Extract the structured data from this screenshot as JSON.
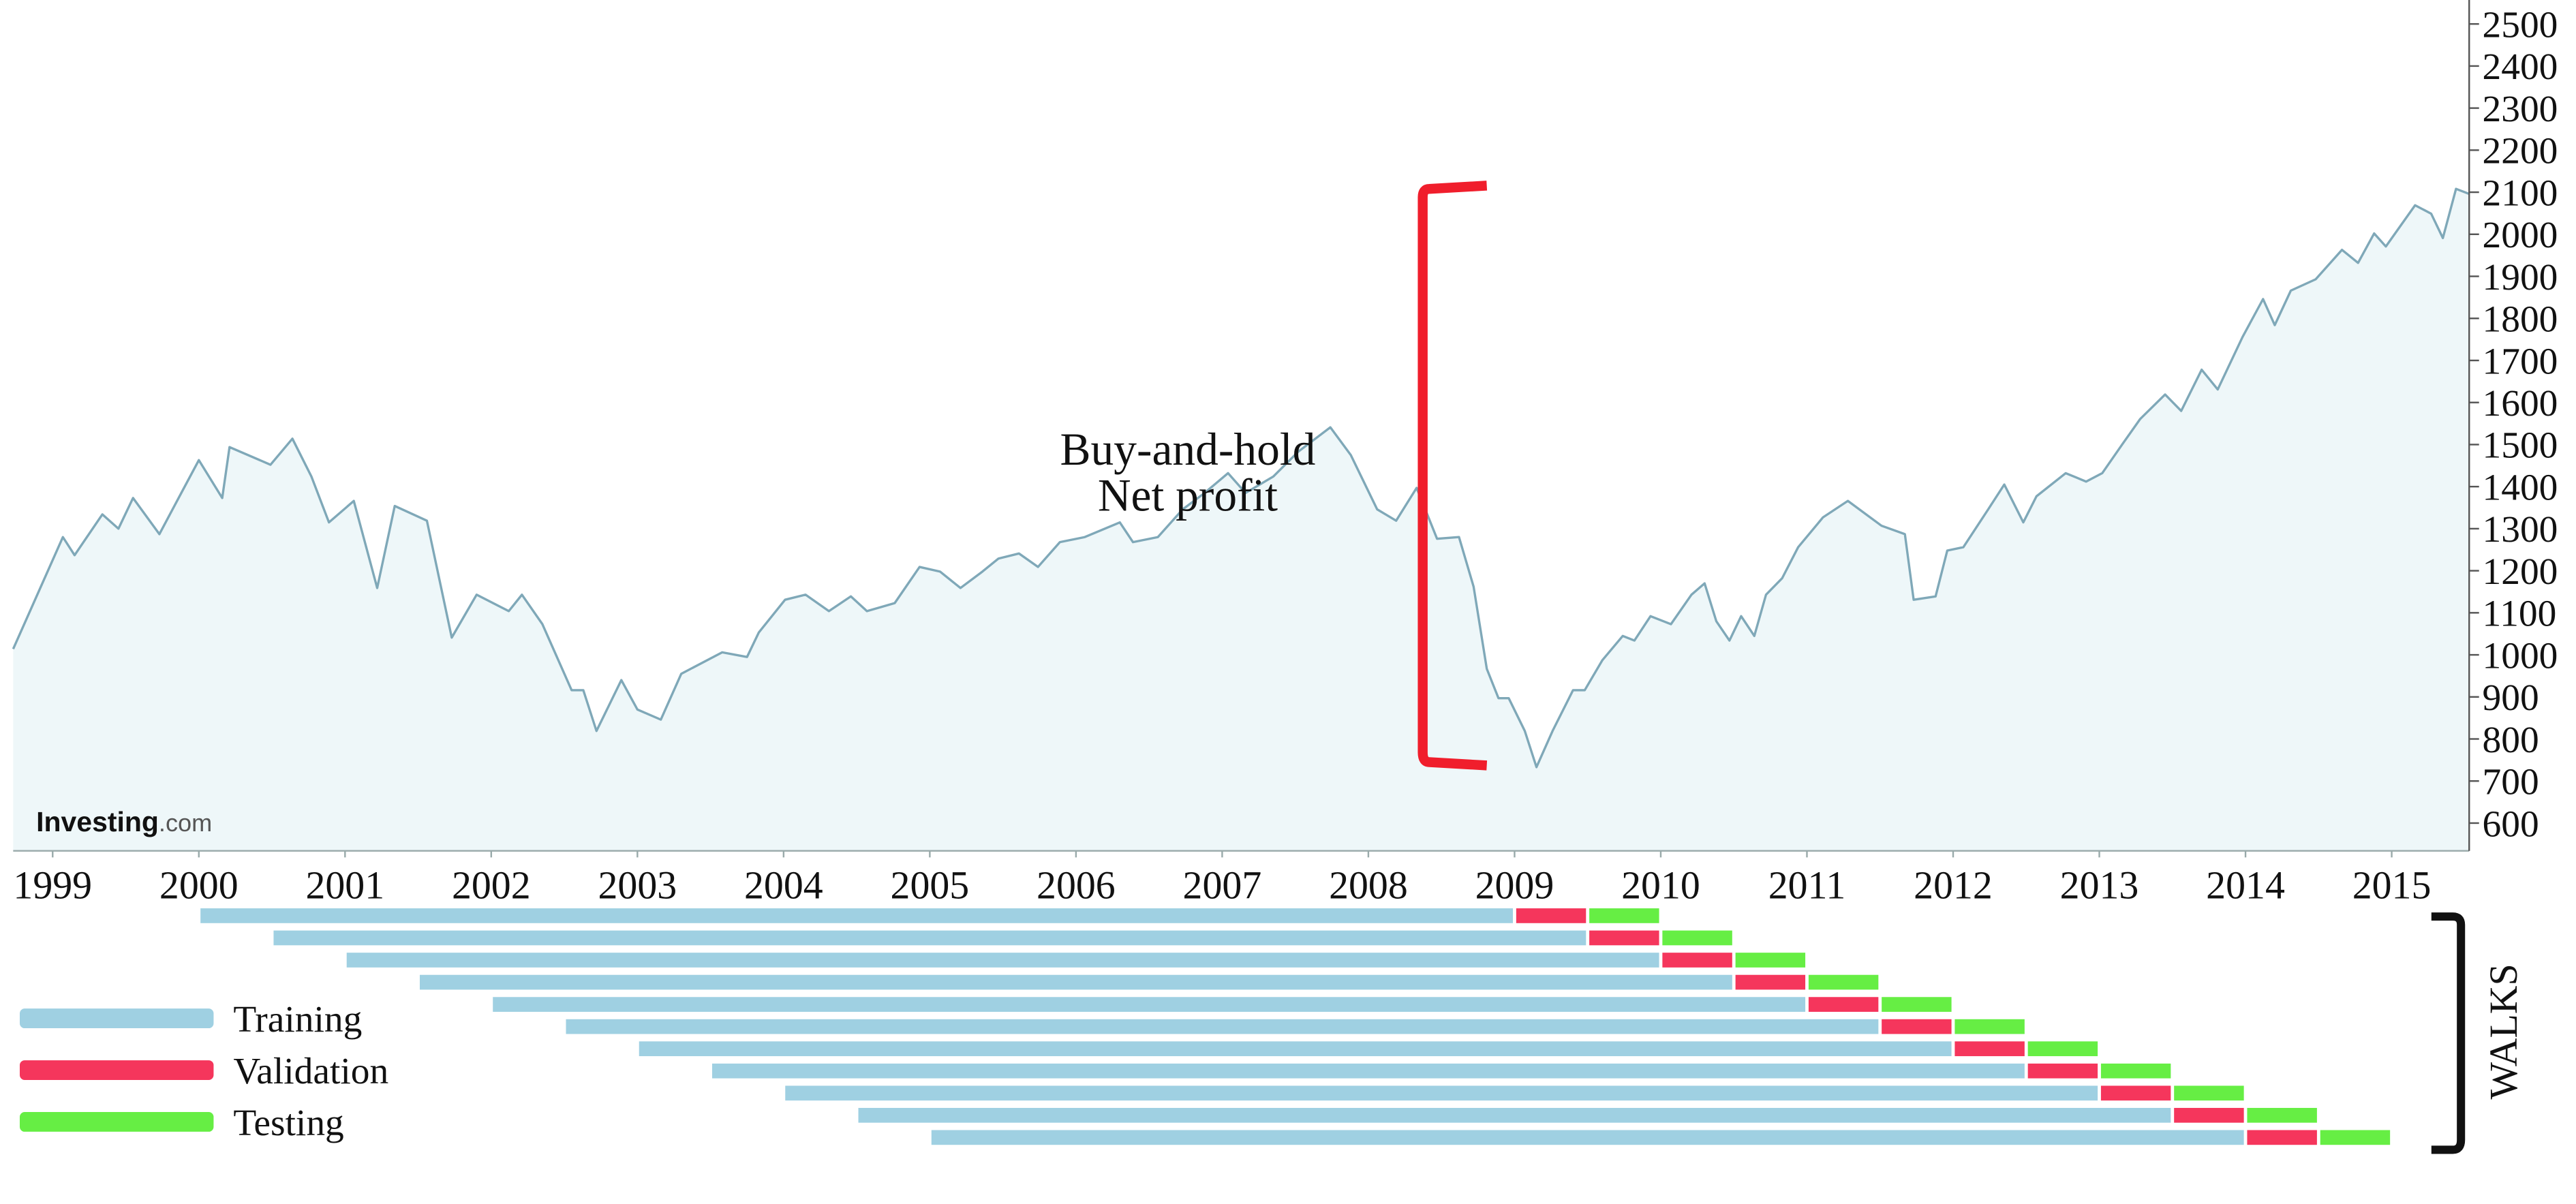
{
  "chart_data": {
    "type": "line",
    "annotation": [
      "Buy-and-hold",
      "Net profit"
    ],
    "watermark": {
      "brand": "Investing",
      "suffix": ".com"
    },
    "walks_label": "WALKS",
    "line_color": "#7fa8b8",
    "fill_color": "#eef7f9",
    "xlim": [
      1998.73,
      2015.53
    ],
    "xticks": [
      1999,
      2000,
      2001,
      2002,
      2003,
      2004,
      2005,
      2006,
      2007,
      2008,
      2009,
      2010,
      2011,
      2012,
      2013,
      2014,
      2015
    ],
    "ylim": [
      534,
      2557
    ],
    "yticks": [
      600,
      700,
      800,
      900,
      1000,
      1100,
      1200,
      1300,
      1400,
      1500,
      1600,
      1700,
      1800,
      1900,
      2000,
      2100,
      2200,
      2300,
      2400,
      2500
    ],
    "x": [
      1998.73,
      1999.07,
      1999.15,
      1999.34,
      1999.45,
      1999.55,
      1999.73,
      1999.88,
      2000.0,
      2000.16,
      2000.21,
      2000.49,
      2000.64,
      2000.77,
      2000.89,
      2001.06,
      2001.22,
      2001.34,
      2001.56,
      2001.73,
      2001.9,
      2002.12,
      2002.21,
      2002.35,
      2002.55,
      2002.63,
      2002.72,
      2002.89,
      2003.0,
      2003.16,
      2003.3,
      2003.58,
      2003.75,
      2003.83,
      2004.01,
      2004.15,
      2004.31,
      2004.46,
      2004.57,
      2004.76,
      2004.93,
      2005.07,
      2005.21,
      2005.36,
      2005.47,
      2005.61,
      2005.74,
      2005.89,
      2006.06,
      2006.3,
      2006.39,
      2006.56,
      2006.73,
      2006.88,
      2007.04,
      2007.16,
      2007.35,
      2007.52,
      2007.74,
      2007.88,
      2008.06,
      2008.19,
      2008.33,
      2008.47,
      2008.62,
      2008.72,
      2008.81,
      2008.89,
      2008.96,
      2009.07,
      2009.15,
      2009.26,
      2009.4,
      2009.48,
      2009.6,
      2009.74,
      2009.82,
      2009.93,
      2010.07,
      2010.21,
      2010.3,
      2010.38,
      2010.47,
      2010.55,
      2010.64,
      2010.72,
      2010.83,
      2010.94,
      2011.11,
      2011.28,
      2011.51,
      2011.67,
      2011.73,
      2011.88,
      2011.96,
      2012.07,
      2012.24,
      2012.35,
      2012.48,
      2012.57,
      2012.77,
      2012.91,
      2013.02,
      2013.16,
      2013.28,
      2013.45,
      2013.56,
      2013.7,
      2013.81,
      2013.98,
      2014.12,
      2014.2,
      2014.31,
      2014.48,
      2014.66,
      2014.77,
      2014.88,
      2014.96,
      2015.16,
      2015.27,
      2015.35,
      2015.44,
      2015.53
    ],
    "values": [
      1014,
      1280,
      1237,
      1334,
      1300,
      1373,
      1287,
      1385,
      1463,
      1373,
      1494,
      1452,
      1514,
      1424,
      1315,
      1366,
      1159,
      1354,
      1319,
      1041,
      1143,
      1104,
      1143,
      1073,
      916,
      916,
      819,
      940,
      870,
      846,
      955,
      1006,
      995,
      1053,
      1131,
      1143,
      1104,
      1139,
      1104,
      1123,
      1209,
      1198,
      1159,
      1198,
      1229,
      1241,
      1209,
      1268,
      1280,
      1315,
      1268,
      1280,
      1346,
      1385,
      1432,
      1385,
      1424,
      1483,
      1541,
      1475,
      1346,
      1319,
      1397,
      1276,
      1280,
      1162,
      967,
      897,
      897,
      819,
      733,
      819,
      916,
      916,
      987,
      1045,
      1034,
      1092,
      1073,
      1143,
      1170,
      1080,
      1034,
      1092,
      1045,
      1143,
      1182,
      1256,
      1327,
      1366,
      1307,
      1287,
      1131,
      1139,
      1248,
      1256,
      1346,
      1405,
      1315,
      1377,
      1432,
      1412,
      1432,
      1502,
      1561,
      1619,
      1580,
      1678,
      1631,
      1756,
      1846,
      1784,
      1866,
      1893,
      1963,
      1932,
      2002,
      1971,
      2069,
      2049,
      1991,
      2108,
      2096
    ],
    "legend": [
      {
        "name": "Training",
        "color": "#9fd0e2"
      },
      {
        "name": "Validation",
        "color": "#f5365c"
      },
      {
        "name": "Testing",
        "color": "#66ee44"
      }
    ],
    "walks": [
      [
        [
          2000.0,
          2009.0
        ],
        [
          2009.0,
          2009.5
        ],
        [
          2009.5,
          2010.0
        ]
      ],
      [
        [
          2000.5,
          2009.5
        ],
        [
          2009.5,
          2010.0
        ],
        [
          2010.0,
          2010.5
        ]
      ],
      [
        [
          2001.0,
          2010.0
        ],
        [
          2010.0,
          2010.5
        ],
        [
          2010.5,
          2011.0
        ]
      ],
      [
        [
          2001.5,
          2010.5
        ],
        [
          2010.5,
          2011.0
        ],
        [
          2011.0,
          2011.5
        ]
      ],
      [
        [
          2002.0,
          2011.0
        ],
        [
          2011.0,
          2011.5
        ],
        [
          2011.5,
          2012.0
        ]
      ],
      [
        [
          2002.5,
          2011.5
        ],
        [
          2011.5,
          2012.0
        ],
        [
          2012.0,
          2012.5
        ]
      ],
      [
        [
          2003.0,
          2012.0
        ],
        [
          2012.0,
          2012.5
        ],
        [
          2012.5,
          2013.0
        ]
      ],
      [
        [
          2003.5,
          2012.5
        ],
        [
          2012.5,
          2013.0
        ],
        [
          2013.0,
          2013.5
        ]
      ],
      [
        [
          2004.0,
          2013.0
        ],
        [
          2013.0,
          2013.5
        ],
        [
          2013.5,
          2014.0
        ]
      ],
      [
        [
          2004.5,
          2013.5
        ],
        [
          2013.5,
          2014.0
        ],
        [
          2014.0,
          2014.5
        ]
      ],
      [
        [
          2005.0,
          2014.0
        ],
        [
          2014.0,
          2014.5
        ],
        [
          2014.5,
          2015.0
        ]
      ]
    ]
  }
}
